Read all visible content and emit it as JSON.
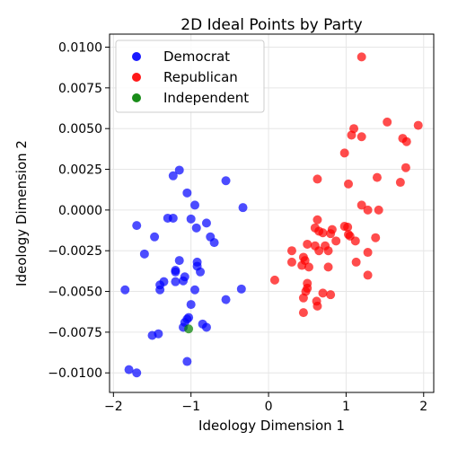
{
  "chart_data": {
    "type": "scatter",
    "title": "2D Ideal Points by Party",
    "xlabel": "Ideology Dimension 1",
    "ylabel": "Ideology Dimension 2",
    "xlim": [
      -2.05,
      2.13
    ],
    "ylim": [
      -0.0112,
      0.0108
    ],
    "xticks": [
      -2,
      -1,
      0,
      1,
      2
    ],
    "yticks": [
      -0.01,
      -0.0075,
      -0.005,
      -0.0025,
      0.0,
      0.0025,
      0.005,
      0.0075,
      0.01
    ],
    "grid": true,
    "legend_position": "top-left",
    "series": [
      {
        "name": "Democrat",
        "color": "#0000ff",
        "points": [
          [
            -1.15,
            0.00245
          ],
          [
            -1.23,
            0.0021
          ],
          [
            -1.05,
            0.00105
          ],
          [
            -0.55,
            0.0018
          ],
          [
            -0.95,
            0.0003
          ],
          [
            -0.33,
            0.00015
          ],
          [
            -1.3,
            -0.0005
          ],
          [
            -1.23,
            -0.0005
          ],
          [
            -1.0,
            -0.00055
          ],
          [
            -0.8,
            -0.0008
          ],
          [
            -0.93,
            -0.0011
          ],
          [
            -1.7,
            -0.00095
          ],
          [
            -1.47,
            -0.00165
          ],
          [
            -0.75,
            -0.00165
          ],
          [
            -0.7,
            -0.002
          ],
          [
            -1.6,
            -0.0027
          ],
          [
            -1.15,
            -0.0031
          ],
          [
            -0.92,
            -0.0032
          ],
          [
            -0.92,
            -0.00345
          ],
          [
            -1.2,
            -0.0037
          ],
          [
            -1.2,
            -0.0038
          ],
          [
            -0.88,
            -0.0038
          ],
          [
            -1.08,
            -0.0041
          ],
          [
            -1.1,
            -0.00435
          ],
          [
            -1.2,
            -0.0044
          ],
          [
            -1.35,
            -0.0044
          ],
          [
            -1.4,
            -0.0046
          ],
          [
            -1.4,
            -0.0049
          ],
          [
            -0.95,
            -0.0049
          ],
          [
            -1.85,
            -0.0049
          ],
          [
            -0.35,
            -0.00485
          ],
          [
            -0.55,
            -0.0055
          ],
          [
            -1.0,
            -0.0058
          ],
          [
            -1.05,
            -0.0067
          ],
          [
            -1.03,
            -0.0066
          ],
          [
            -1.08,
            -0.0069
          ],
          [
            -0.85,
            -0.007
          ],
          [
            -1.1,
            -0.0072
          ],
          [
            -0.8,
            -0.0072
          ],
          [
            -1.5,
            -0.0077
          ],
          [
            -1.42,
            -0.0076
          ],
          [
            -1.05,
            -0.0093
          ],
          [
            -1.8,
            -0.0098
          ],
          [
            -1.7,
            -0.01
          ]
        ]
      },
      {
        "name": "Republican",
        "color": "#ff0000",
        "points": [
          [
            1.2,
            0.0094
          ],
          [
            1.53,
            0.0054
          ],
          [
            1.93,
            0.0052
          ],
          [
            1.1,
            0.005
          ],
          [
            1.07,
            0.0046
          ],
          [
            1.2,
            0.0045
          ],
          [
            1.73,
            0.0044
          ],
          [
            1.78,
            0.0042
          ],
          [
            0.98,
            0.0035
          ],
          [
            1.77,
            0.0026
          ],
          [
            0.63,
            0.0019
          ],
          [
            1.4,
            0.002
          ],
          [
            1.7,
            0.0017
          ],
          [
            1.03,
            0.0016
          ],
          [
            1.2,
            0.0003
          ],
          [
            1.28,
            0.0
          ],
          [
            1.42,
            0.0
          ],
          [
            0.63,
            -0.0006
          ],
          [
            0.6,
            -0.0011
          ],
          [
            0.82,
            -0.0012
          ],
          [
            0.98,
            -0.001
          ],
          [
            1.02,
            -0.00105
          ],
          [
            0.65,
            -0.0013
          ],
          [
            0.7,
            -0.0014
          ],
          [
            0.8,
            -0.00145
          ],
          [
            1.03,
            -0.0015
          ],
          [
            1.05,
            -0.0016
          ],
          [
            0.87,
            -0.0019
          ],
          [
            1.12,
            -0.0019
          ],
          [
            1.38,
            -0.0017
          ],
          [
            0.5,
            -0.0021
          ],
          [
            0.6,
            -0.0022
          ],
          [
            0.73,
            -0.0022
          ],
          [
            0.65,
            -0.0025
          ],
          [
            0.77,
            -0.0025
          ],
          [
            0.3,
            -0.0025
          ],
          [
            1.28,
            -0.0026
          ],
          [
            0.45,
            -0.0029
          ],
          [
            0.3,
            -0.0032
          ],
          [
            0.47,
            -0.0031
          ],
          [
            1.13,
            -0.0032
          ],
          [
            0.43,
            -0.0034
          ],
          [
            0.52,
            -0.0035
          ],
          [
            0.77,
            -0.0035
          ],
          [
            1.28,
            -0.004
          ],
          [
            0.08,
            -0.0043
          ],
          [
            0.5,
            -0.0045
          ],
          [
            0.5,
            -0.0048
          ],
          [
            0.48,
            -0.005
          ],
          [
            0.7,
            -0.0051
          ],
          [
            0.8,
            -0.0052
          ],
          [
            0.45,
            -0.0054
          ],
          [
            0.62,
            -0.0056
          ],
          [
            0.63,
            -0.0059
          ],
          [
            0.45,
            -0.0063
          ]
        ]
      },
      {
        "name": "Independent",
        "color": "#008000",
        "points": [
          [
            -1.03,
            -0.0073
          ]
        ]
      }
    ]
  }
}
